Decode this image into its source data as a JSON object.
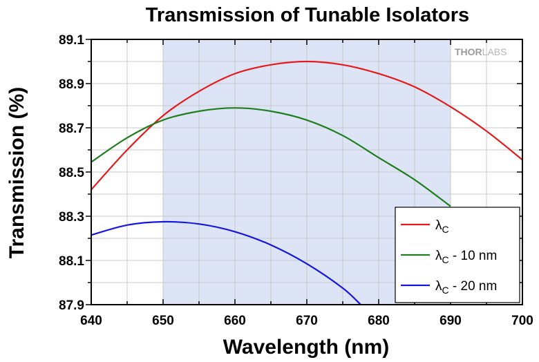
{
  "chart_data": {
    "type": "line",
    "title": "Transmission of Tunable Isolators",
    "xlabel": "Wavelength (nm)",
    "ylabel": "Transmission (%)",
    "xlim": [
      640,
      700
    ],
    "ylim": [
      87.9,
      89.1
    ],
    "xticks": [
      640,
      650,
      660,
      670,
      680,
      690,
      700
    ],
    "yticks": [
      87.9,
      88.1,
      88.3,
      88.5,
      88.7,
      88.9,
      89.1
    ],
    "xtick_labels": [
      "640",
      "650",
      "660",
      "670",
      "680",
      "690",
      "700"
    ],
    "ytick_labels": [
      "87.9",
      "88.1",
      "88.3",
      "88.5",
      "88.7",
      "88.9",
      "89.1"
    ],
    "grid": true,
    "highlight_range": {
      "x": [
        650,
        690
      ],
      "color": "#dce4f5"
    },
    "legend_position": "bottom-right",
    "logo": {
      "part1": "THOR",
      "part2": "LABS"
    },
    "series": [
      {
        "name": "λc",
        "legend_main": "λ",
        "legend_sub": "C",
        "legend_suffix": "",
        "color": "#e41a1c",
        "x": [
          640,
          645,
          650,
          655,
          660,
          665,
          670,
          675,
          680,
          685,
          690,
          695,
          700
        ],
        "y": [
          88.42,
          88.6,
          88.755,
          88.865,
          88.945,
          88.985,
          89.0,
          88.985,
          88.945,
          88.885,
          88.795,
          88.685,
          88.555
        ]
      },
      {
        "name": "λc - 10 nm",
        "legend_main": "λ",
        "legend_sub": "C",
        "legend_suffix": " - 10 nm",
        "color": "#1e7e1e",
        "x": [
          640,
          645,
          650,
          655,
          660,
          665,
          670,
          675,
          680,
          685,
          690
        ],
        "y": [
          88.545,
          88.655,
          88.735,
          88.775,
          88.79,
          88.775,
          88.735,
          88.665,
          88.565,
          88.465,
          88.345
        ]
      },
      {
        "name": "λc - 20 nm",
        "legend_main": "λ",
        "legend_sub": "C",
        "legend_suffix": " - 20 nm",
        "color": "#1515e0",
        "x": [
          640,
          645,
          650,
          655,
          660,
          665,
          670,
          675,
          677.5
        ],
        "y": [
          88.215,
          88.26,
          88.275,
          88.265,
          88.23,
          88.17,
          88.085,
          87.975,
          87.9
        ]
      }
    ]
  }
}
